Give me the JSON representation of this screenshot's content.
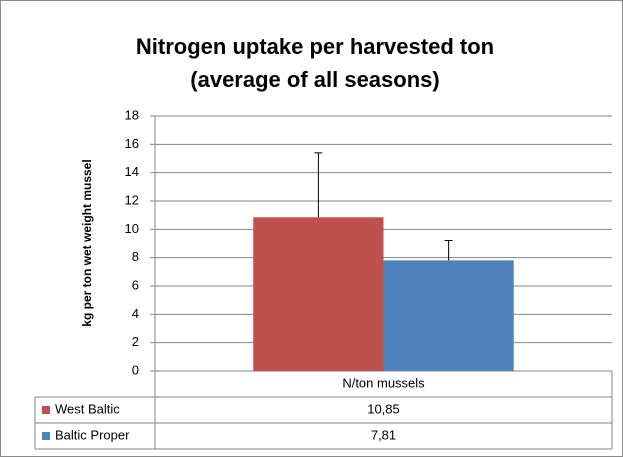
{
  "chart_data": {
    "type": "bar",
    "title": "Nitrogen uptake per harvested ton (average of all seasons)",
    "y_label": "kg per ton wet weight mussel",
    "categories": [
      "N/ton mussels"
    ],
    "series": [
      {
        "name": "West Baltic",
        "color": "#c0504d",
        "values": [
          10.85
        ],
        "value_labels": [
          "10,85"
        ],
        "errors": [
          4.55
        ]
      },
      {
        "name": "Baltic Proper",
        "color": "#4f81bd",
        "values": [
          7.81
        ],
        "value_labels": [
          "7,81"
        ],
        "errors": [
          1.4
        ]
      }
    ],
    "ylim": [
      0,
      18
    ],
    "yticks": [
      0,
      2,
      4,
      6,
      8,
      10,
      12,
      14,
      16,
      18
    ],
    "grid": true,
    "data_table": true
  }
}
